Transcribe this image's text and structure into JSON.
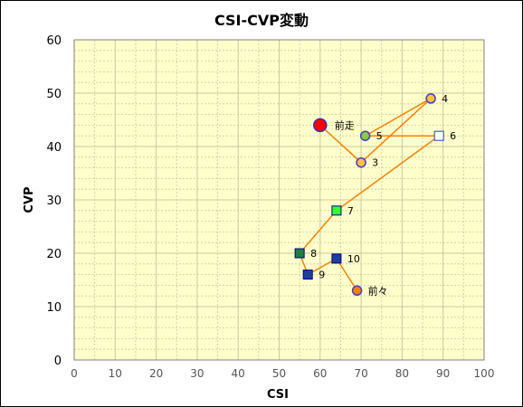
{
  "chart_data": {
    "type": "scatter",
    "title": "CSI-CVP変動",
    "xlabel": "CSI",
    "ylabel": "CVP",
    "xlim": [
      0,
      100
    ],
    "ylim": [
      0,
      60
    ],
    "x_ticks": [
      "0",
      "10",
      "20",
      "30",
      "40",
      "50",
      "60",
      "70",
      "80",
      "90",
      "100"
    ],
    "y_ticks": [
      "0",
      "10",
      "20",
      "30",
      "40",
      "50",
      "60"
    ],
    "grid": true,
    "plot_background": "#ffffcc",
    "grid_color": "#c8c8a0",
    "line_color": "#ff8000",
    "points": [
      {
        "label": "前々",
        "x": 69,
        "y": 13,
        "shape": "circle",
        "fill": "#ff8000",
        "stroke": "#4040c0"
      },
      {
        "label": "10",
        "x": 64,
        "y": 19,
        "shape": "square",
        "fill": "#1f3f9f",
        "stroke": "#000080"
      },
      {
        "label": "9",
        "x": 57,
        "y": 16,
        "shape": "square",
        "fill": "#1f3f9f",
        "stroke": "#000080"
      },
      {
        "label": "8",
        "x": 55,
        "y": 20,
        "shape": "square",
        "fill": "#1f7f3f",
        "stroke": "#000080"
      },
      {
        "label": "7",
        "x": 64,
        "y": 28,
        "shape": "square",
        "fill": "#33ff33",
        "stroke": "#000080"
      },
      {
        "label": "6",
        "x": 89,
        "y": 42,
        "shape": "square",
        "fill": "#ffffff",
        "stroke": "#2040c0"
      },
      {
        "label": "5",
        "x": 71,
        "y": 42,
        "shape": "circle",
        "fill": "#88cc44",
        "stroke": "#4040c0"
      },
      {
        "label": "4",
        "x": 87,
        "y": 49,
        "shape": "circle",
        "fill": "#ffc040",
        "stroke": "#4040c0"
      },
      {
        "label": "3",
        "x": 70,
        "y": 37,
        "shape": "circle",
        "fill": "#ffc040",
        "stroke": "#4040c0"
      },
      {
        "label": "前走",
        "x": 60,
        "y": 44,
        "shape": "circle-large",
        "fill": "#ff0000",
        "stroke": "#3030c0"
      }
    ],
    "path_order": [
      "前々",
      "10",
      "9",
      "8",
      "7",
      "6",
      "5",
      "4",
      "3",
      "前走"
    ]
  }
}
